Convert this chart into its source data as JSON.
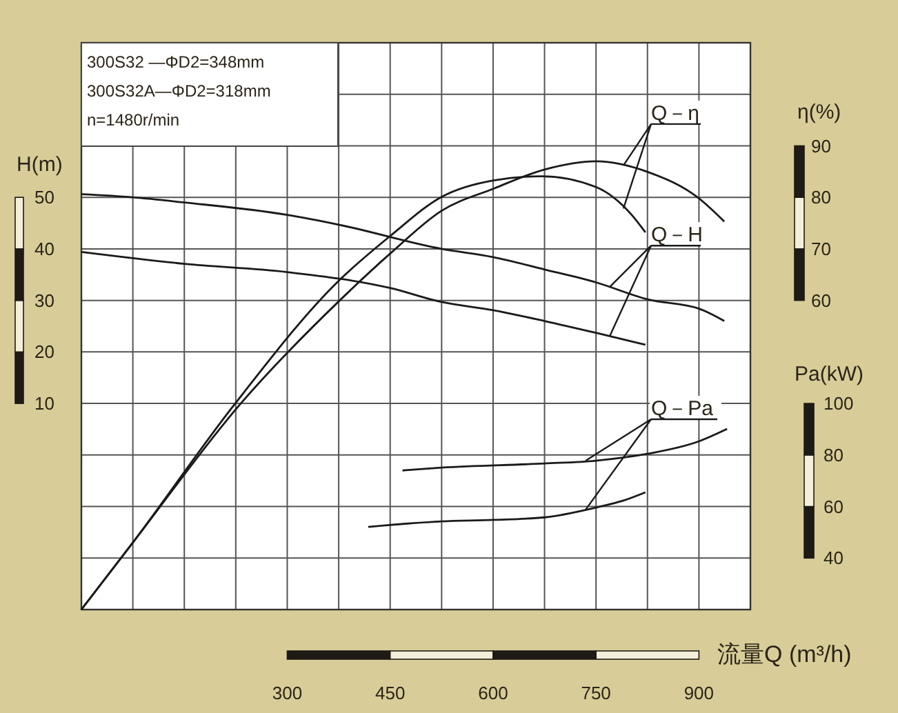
{
  "chart_data": {
    "type": "line",
    "xlabel": "流量Q (m³/h)",
    "ylabel": "H(m)",
    "y2label": "η(%)",
    "y3label": "Pa(kW)",
    "xlim": [
      0,
      975
    ],
    "xticks": [
      {
        "value": 75,
        "label": null
      },
      {
        "value": 150,
        "label": null
      },
      {
        "value": 225,
        "label": null
      },
      300,
      {
        "value": 375,
        "label": null
      },
      450,
      {
        "value": 525,
        "label": null
      },
      600,
      {
        "value": 675,
        "label": null
      },
      750,
      {
        "value": 825,
        "label": null
      },
      900
    ],
    "ylim": [
      -30,
      80
    ],
    "yticks": [
      {
        "value": -20,
        "label": null
      },
      {
        "value": -10,
        "label": null
      },
      {
        "value": 0,
        "label": null
      },
      10,
      20,
      30,
      40,
      50,
      {
        "value": 60,
        "label": null
      },
      {
        "value": 70,
        "label": null
      }
    ],
    "y2lim": [
      0,
      110
    ],
    "y2ticks": [
      60,
      70,
      80,
      90
    ],
    "y3lim": [
      20,
      240
    ],
    "y3ticks": [
      40,
      60,
      80,
      100
    ],
    "grid": true,
    "series": [
      {
        "axis": "y2",
        "color": "#1a1a1a",
        "x": [
          0,
          75,
          231,
          375,
          451,
          525,
          601,
          675,
          750,
          826,
          900,
          937
        ],
        "values": [
          0,
          13,
          39.8,
          59.8,
          69.2,
          77.4,
          81.7,
          85.4,
          87,
          84.9,
          79.8,
          75.3
        ]
      },
      {
        "axis": "y2",
        "color": "#1a1a1a",
        "x": [
          0,
          75,
          223,
          375,
          451,
          525,
          601,
          671,
          750,
          802,
          822
        ],
        "values": [
          0,
          13,
          39.8,
          63.8,
          72.6,
          80.1,
          83.3,
          84.1,
          82,
          76.6,
          73.2
        ]
      },
      {
        "axis": "y",
        "color": "#1a1a1a",
        "x": [
          0,
          75,
          150,
          300,
          375,
          525,
          600,
          675,
          750,
          825,
          900,
          937
        ],
        "values": [
          50.6,
          50,
          49,
          46.6,
          44.7,
          40,
          38.4,
          36,
          33.5,
          30.2,
          28.4,
          26
        ]
      },
      {
        "axis": "y",
        "color": "#1a1a1a",
        "x": [
          0,
          150,
          300,
          450,
          525,
          600,
          675,
          750,
          822
        ],
        "values": [
          39.4,
          37.1,
          35.5,
          32.4,
          29.7,
          28.1,
          26,
          23.7,
          21.4
        ]
      },
      {
        "axis": "y3",
        "color": "#1a1a1a",
        "x": [
          468,
          525,
          675,
          750,
          826,
          900,
          941
        ],
        "values": [
          74,
          75.1,
          76.7,
          77.8,
          80.5,
          85.3,
          90.1
        ]
      },
      {
        "axis": "y3",
        "color": "#1a1a1a",
        "x": [
          418,
          525,
          601,
          675,
          750,
          790,
          822
        ],
        "values": [
          52.1,
          54.2,
          54.8,
          55.8,
          59.6,
          62.3,
          65.5
        ]
      }
    ],
    "annotations": [
      "300S32 —ΦD2=348mm",
      "300S32A—ΦD2=318mm",
      "n=1480r/min",
      {
        "text": "Q－η",
        "x": 790,
        "y": 56.2
      },
      {
        "text": "Q－H",
        "x": 770,
        "y": 32.6
      },
      {
        "text": "Q－Pa",
        "x": 735,
        "y": -1.1
      }
    ]
  }
}
